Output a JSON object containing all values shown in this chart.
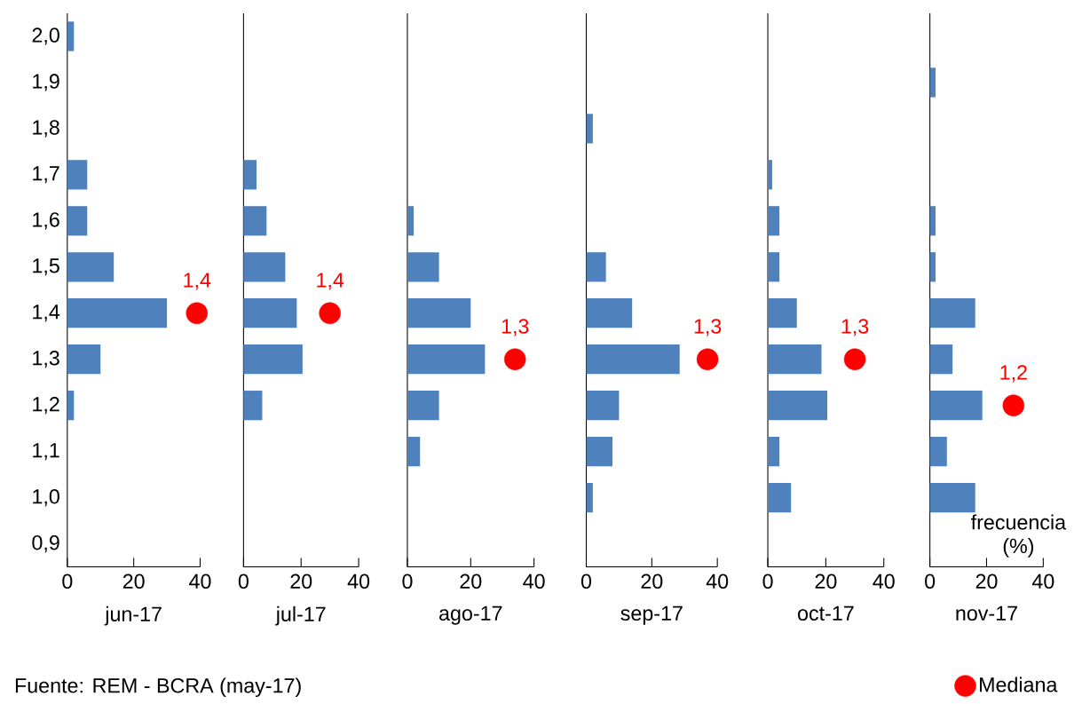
{
  "chart_data": [
    {
      "type": "bar",
      "orientation": "horizontal",
      "marker": "circle",
      "xlabel": "jun-17",
      "categories": [
        "2,0",
        "1,9",
        "1,8",
        "1,7",
        "1,6",
        "1,5",
        "1,4",
        "1,3",
        "1,2",
        "1,1",
        "1,0",
        "0,9"
      ],
      "xlim": [
        0,
        40
      ],
      "xticks": [
        0,
        20,
        40
      ],
      "annotations": [
        "Fuente: REM - BCRA (may-17)",
        {
          "text": "1,4",
          "x": 39,
          "y": "1,4"
        }
      ],
      "series": [
        {
          "type": "bar",
          "color": "#4f81bd",
          "values": [
            2,
            0,
            0,
            6,
            6,
            14,
            30,
            10,
            2,
            0,
            0,
            0
          ]
        },
        {
          "type": "scatter",
          "color": "#ff0000",
          "values": [
            null,
            null,
            null,
            null,
            null,
            null,
            39,
            null,
            null,
            null,
            null,
            null
          ]
        }
      ]
    },
    {
      "type": "bar",
      "orientation": "horizontal",
      "marker": "circle",
      "xlabel": "jul-17",
      "categories": [
        "2,0",
        "1,9",
        "1,8",
        "1,7",
        "1,6",
        "1,5",
        "1,4",
        "1,3",
        "1,2",
        "1,1",
        "1,0",
        "0,9"
      ],
      "xlim": [
        0,
        40
      ],
      "xticks": [
        0,
        20,
        40
      ],
      "tick_labels": "x",
      "annotations": [
        {
          "text": "1,4",
          "x": 30,
          "y": "1,4"
        }
      ],
      "series": [
        {
          "type": "bar",
          "color": "#4f81bd",
          "values": [
            0,
            0,
            0,
            4.5,
            8,
            14.5,
            18.5,
            20.5,
            6.5,
            0,
            0,
            0
          ]
        },
        {
          "type": "scatter",
          "color": "#ff0000",
          "values": [
            null,
            null,
            null,
            null,
            null,
            null,
            30,
            null,
            null,
            null,
            null,
            null
          ]
        }
      ]
    },
    {
      "type": "bar",
      "orientation": "horizontal",
      "marker": "circle",
      "xlabel": "ago-17",
      "categories": [
        "2,0",
        "1,9",
        "1,8",
        "1,7",
        "1,6",
        "1,5",
        "1,4",
        "1,3",
        "1,2",
        "1,1",
        "1,0",
        "0,9"
      ],
      "xlim": [
        0,
        40
      ],
      "xticks": [
        0,
        20,
        40
      ],
      "tick_labels": "x",
      "annotations": [
        {
          "text": "1,3",
          "x": 34,
          "y": "1,3"
        }
      ],
      "series": [
        {
          "type": "bar",
          "color": "#4f81bd",
          "values": [
            0,
            0,
            0,
            0,
            2,
            10,
            20,
            24.5,
            10,
            4,
            0,
            0
          ]
        },
        {
          "type": "scatter",
          "color": "#ff0000",
          "values": [
            null,
            null,
            null,
            null,
            null,
            null,
            null,
            34,
            null,
            null,
            null,
            null
          ]
        }
      ]
    },
    {
      "type": "bar",
      "orientation": "horizontal",
      "marker": "circle",
      "xlabel": "sep-17",
      "categories": [
        "2,0",
        "1,9",
        "1,8",
        "1,7",
        "1,6",
        "1,5",
        "1,4",
        "1,3",
        "1,2",
        "1,1",
        "1,0",
        "0,9"
      ],
      "xlim": [
        0,
        40
      ],
      "xticks": [
        0,
        20,
        40
      ],
      "tick_labels": "x",
      "annotations": [
        {
          "text": "1,3",
          "x": 37,
          "y": "1,3"
        }
      ],
      "series": [
        {
          "type": "bar",
          "color": "#4f81bd",
          "values": [
            0,
            0,
            2,
            0,
            0,
            6,
            14,
            28.5,
            10,
            8,
            2,
            0
          ]
        },
        {
          "type": "scatter",
          "color": "#ff0000",
          "values": [
            null,
            null,
            null,
            null,
            null,
            null,
            null,
            37,
            null,
            null,
            null,
            null
          ]
        }
      ]
    },
    {
      "type": "bar",
      "orientation": "horizontal",
      "marker": "circle",
      "xlabel": "oct-17",
      "categories": [
        "2,0",
        "1,9",
        "1,8",
        "1,7",
        "1,6",
        "1,5",
        "1,4",
        "1,3",
        "1,2",
        "1,1",
        "1,0",
        "0,9"
      ],
      "xlim": [
        0,
        40
      ],
      "xticks": [
        0,
        20,
        40
      ],
      "tick_labels": "x",
      "annotations": [
        {
          "text": "1,3",
          "x": 30,
          "y": "1,3"
        }
      ],
      "series": [
        {
          "type": "bar",
          "color": "#4f81bd",
          "values": [
            0,
            0,
            0,
            1.5,
            4,
            4,
            10,
            18.5,
            20.5,
            4,
            8,
            0
          ]
        },
        {
          "type": "scatter",
          "color": "#ff0000",
          "values": [
            null,
            null,
            null,
            null,
            null,
            null,
            null,
            30,
            null,
            null,
            null,
            null
          ]
        }
      ]
    },
    {
      "type": "bar",
      "orientation": "horizontal",
      "marker": "circle",
      "xlabel": "nov-17",
      "categories": [
        "2,0",
        "1,9",
        "1,8",
        "1,7",
        "1,6",
        "1,5",
        "1,4",
        "1,3",
        "1,2",
        "1,1",
        "1,0",
        "0,9"
      ],
      "xlim": [
        0,
        40
      ],
      "xticks": [
        0,
        20,
        40
      ],
      "tick_labels": "x",
      "legend": "bottom right",
      "annotations": [
        "frecuencia (%)",
        {
          "text": "1,2",
          "x": 29.5,
          "y": "1,2"
        }
      ],
      "series": [
        {
          "type": "bar",
          "color": "#4f81bd",
          "values": [
            0,
            2,
            0,
            0,
            2,
            2,
            16,
            8,
            18.5,
            6,
            16,
            0
          ]
        },
        {
          "type": "scatter",
          "name": "Mediana",
          "color": "#ff0000",
          "values": [
            null,
            null,
            null,
            null,
            null,
            null,
            null,
            null,
            29.5,
            null,
            null,
            null
          ]
        }
      ]
    }
  ]
}
